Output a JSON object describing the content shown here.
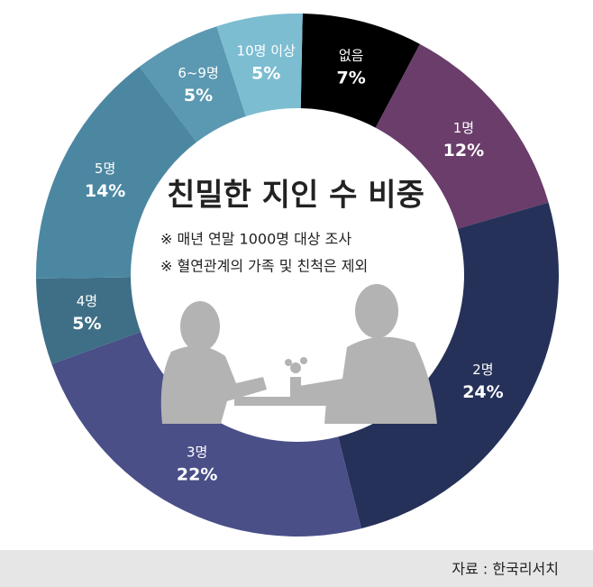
{
  "chart_data": {
    "type": "donut",
    "title": "친밀한 지인 수 비중",
    "notes": [
      "※ 매년 연말 1000명 대상 조사",
      "※ 혈연관계의 가족 및 친척은 제외"
    ],
    "categories": [
      "없음",
      "1명",
      "2명",
      "3명",
      "4명",
      "5명",
      "6~9명",
      "10명 이상"
    ],
    "values": [
      7,
      12,
      24,
      22,
      5,
      14,
      5,
      5
    ],
    "value_labels": [
      "7%",
      "12%",
      "24%",
      "22%",
      "5%",
      "14%",
      "5%",
      "5%"
    ],
    "colors": [
      "#000000",
      "#6a3d6b",
      "#253159",
      "#4a4f88",
      "#3e6f86",
      "#4c87a2",
      "#5b98b1",
      "#7dbdd2"
    ],
    "source": "자료 : 한국리서치"
  }
}
